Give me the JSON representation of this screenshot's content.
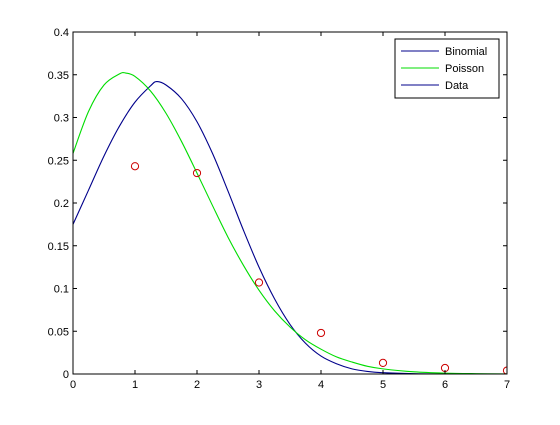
{
  "chart_data": {
    "type": "line",
    "title": "",
    "xlabel": "",
    "ylabel": "",
    "xlim": [
      0,
      7
    ],
    "ylim": [
      0,
      0.4
    ],
    "xticks": [
      "0",
      "1",
      "2",
      "3",
      "4",
      "5",
      "6",
      "7"
    ],
    "yticks": [
      "0",
      "0.05",
      "0.1",
      "0.15",
      "0.2",
      "0.25",
      "0.3",
      "0.35",
      "0.4"
    ],
    "grid": false,
    "legend_position": "top-right",
    "series": [
      {
        "name": "Binomial",
        "kind": "line",
        "color": "#00008b",
        "x": [
          0,
          0.25,
          0.5,
          0.75,
          1,
          1.25,
          1.35,
          1.5,
          1.75,
          2,
          2.25,
          2.5,
          2.75,
          3,
          3.25,
          3.5,
          3.75,
          4,
          4.25,
          4.5,
          4.75,
          5,
          5.5,
          6,
          6.5,
          7
        ],
        "y": [
          0.175,
          0.215,
          0.255,
          0.29,
          0.318,
          0.337,
          0.342,
          0.338,
          0.322,
          0.295,
          0.258,
          0.214,
          0.168,
          0.125,
          0.088,
          0.058,
          0.036,
          0.021,
          0.012,
          0.006,
          0.003,
          0.0015,
          0.0004,
          0.0001,
          0.0,
          0.0
        ]
      },
      {
        "name": "Poisson",
        "kind": "line",
        "color": "#00dd00",
        "x": [
          0,
          0.25,
          0.5,
          0.75,
          0.85,
          1,
          1.25,
          1.5,
          1.75,
          2,
          2.25,
          2.5,
          2.75,
          3,
          3.25,
          3.5,
          3.75,
          4,
          4.25,
          4.5,
          4.75,
          5,
          5.5,
          6,
          6.5,
          7
        ],
        "y": [
          0.258,
          0.307,
          0.338,
          0.351,
          0.352,
          0.348,
          0.331,
          0.305,
          0.272,
          0.235,
          0.197,
          0.16,
          0.127,
          0.098,
          0.074,
          0.055,
          0.04,
          0.029,
          0.02,
          0.014,
          0.009,
          0.006,
          0.0025,
          0.001,
          0.0004,
          0.0001
        ]
      },
      {
        "name": "Data",
        "kind": "scatter",
        "color": "#cc0000",
        "legend_color": "#00008b",
        "x": [
          1,
          2,
          3,
          4,
          5,
          6,
          7
        ],
        "y": [
          0.243,
          0.235,
          0.107,
          0.048,
          0.013,
          0.007,
          0.004
        ]
      }
    ]
  }
}
